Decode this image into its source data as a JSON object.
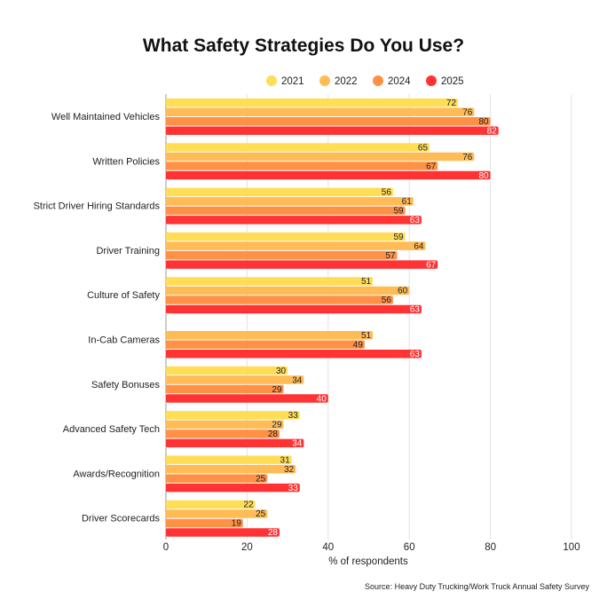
{
  "chart_data": {
    "type": "bar",
    "orientation": "horizontal",
    "title": "What Safety Strategies Do You Use?",
    "xlabel": "% of respondents",
    "ylabel": "",
    "xlim": [
      0,
      100
    ],
    "xticks": [
      0,
      20,
      40,
      60,
      80,
      100
    ],
    "grid": true,
    "legend_position": "top",
    "categories": [
      "Well Maintained Vehicles",
      "Written Policies",
      "Strict Driver Hiring Standards",
      "Driver Training",
      "Culture of Safety",
      "In-Cab Cameras",
      "Safety Bonuses",
      "Advanced Safety Tech",
      "Awards/Recognition",
      "Driver Scorecards"
    ],
    "series": [
      {
        "name": "2021",
        "color": "#FFDD55",
        "values": [
          72,
          65,
          56,
          59,
          51,
          null,
          30,
          33,
          31,
          22
        ]
      },
      {
        "name": "2022",
        "color": "#FFBB55",
        "values": [
          76,
          76,
          61,
          64,
          60,
          51,
          34,
          29,
          32,
          25
        ]
      },
      {
        "name": "2024",
        "color": "#FF9147",
        "values": [
          80,
          67,
          59,
          57,
          56,
          49,
          29,
          28,
          25,
          19
        ]
      },
      {
        "name": "2025",
        "color": "#FF3333",
        "values": [
          82,
          80,
          63,
          67,
          63,
          63,
          40,
          34,
          33,
          28
        ]
      }
    ],
    "source": "Source: Heavy Duty Trucking/Work Truck Annual Safety Survey"
  }
}
